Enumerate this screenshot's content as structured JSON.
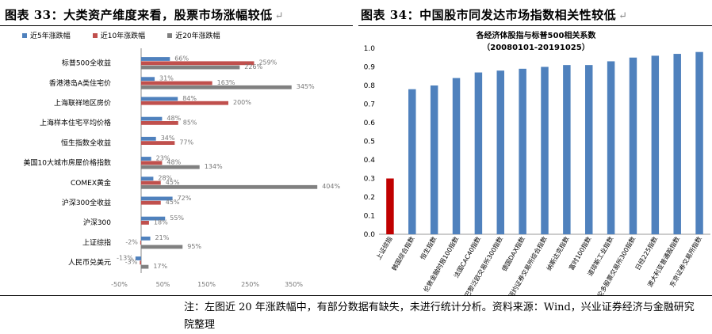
{
  "left_title": "图表 33：大类资产维度来看，股票市场涨幅较低",
  "right_title": "图表 34：中国股市同发达市场指数相关性较低",
  "return_mark": "↵",
  "legend": [
    "近5年涨跌幅",
    "近10年涨跌幅",
    "近20年涨跌幅"
  ],
  "colors": {
    "blue": "#4f81bd",
    "red": "#c0504d",
    "gray": "#808080",
    "darkred": "#c00000"
  },
  "note": "注：左图近 20 年涨跌幅中，有部分数据有缺失，未进行统计分析。资料来源：Wind，兴业证券经济与金融研究院整理",
  "chart_data": [
    {
      "type": "bar",
      "orientation": "horizontal",
      "categories": [
        "标普500全收益",
        "香港港岛A类住宅价",
        "上海联祥地区房价",
        "上海样本住宅平均价格",
        "恒生指数全收益",
        "美国10大城市房屋价格指数",
        "COMEX黄金",
        "沪深300全收益",
        "沪深300",
        "上证综指",
        "人民币兑美元"
      ],
      "series": [
        {
          "name": "近5年涨跌幅",
          "values": [
            66,
            31,
            84,
            48,
            34,
            23,
            28,
            72,
            55,
            21,
            -13
          ],
          "labels": [
            "66%",
            "31%",
            "84%",
            "48%",
            "34%",
            "23%",
            "28%",
            "72%",
            "55%",
            "21%",
            "-13%"
          ]
        },
        {
          "name": "近10年涨跌幅",
          "values": [
            259,
            163,
            200,
            85,
            77,
            48,
            45,
            45,
            18,
            -2,
            -3
          ],
          "labels": [
            "259%",
            "163%",
            "200%",
            "85%",
            "77%",
            "48%",
            "45%",
            "45%",
            "18%",
            "-2%",
            "-3%"
          ]
        },
        {
          "name": "近20年涨跌幅",
          "values": [
            226,
            345,
            null,
            null,
            null,
            134,
            404,
            null,
            null,
            95,
            17
          ],
          "labels": [
            "226%",
            "345%",
            "",
            "",
            "",
            "134%",
            "404%",
            "",
            "",
            "95%",
            "17%"
          ]
        }
      ],
      "xlim": [
        -50,
        400
      ],
      "xticks": [
        "-50%",
        "50%",
        "150%",
        "250%",
        "350%"
      ],
      "xtick_values": [
        -50,
        50,
        150,
        250,
        350
      ]
    },
    {
      "type": "bar",
      "title": "各经济体股指与标普500相关系数",
      "subtitle": "（20080101-20191025）",
      "categories": [
        "上证综指",
        "韩国综合指数",
        "恒生指数",
        "伦敦金融时报100指数",
        "法国CAC40指数",
        "巴黎泛欧交易所300指数",
        "德国DAX指数",
        "纽约证券交易所综合指数",
        "纳斯达克指数",
        "富时100指数",
        "道琼斯工业指数",
        "多伦多股票交易所300指数",
        "日经225指数",
        "澳大利亚普通股指数",
        "东京证券交易所指数"
      ],
      "values": [
        0.3,
        0.78,
        0.8,
        0.84,
        0.87,
        0.88,
        0.89,
        0.9,
        0.91,
        0.91,
        0.93,
        0.95,
        0.96,
        0.97,
        0.98
      ],
      "ylim": [
        0,
        1.0
      ],
      "yticks": [
        "0.0",
        "0.1",
        "0.2",
        "0.3",
        "0.4",
        "0.5",
        "0.6",
        "0.7",
        "0.8",
        "0.9",
        "1.0"
      ],
      "ytick_values": [
        0,
        0.1,
        0.2,
        0.3,
        0.4,
        0.5,
        0.6,
        0.7,
        0.8,
        0.9,
        1.0
      ],
      "highlight_index": 0
    }
  ]
}
